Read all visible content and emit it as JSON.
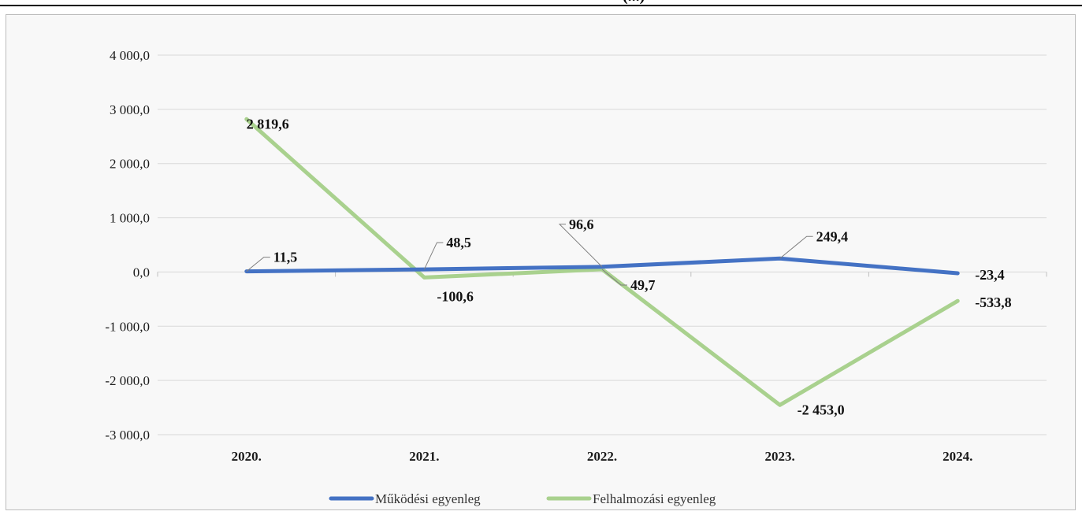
{
  "header": {
    "title_fragment": "(...)"
  },
  "chart_data": {
    "type": "line",
    "categories": [
      "2020.",
      "2021.",
      "2022.",
      "2023.",
      "2024."
    ],
    "ylim": [
      -3000,
      4000
    ],
    "yticks": [
      4000,
      3000,
      2000,
      1000,
      0,
      -1000,
      -2000,
      -3000
    ],
    "ytick_labels": [
      "4 000,0",
      "3 000,0",
      "2 000,0",
      "1 000,0",
      "0,0",
      "-1 000,0",
      "-2 000,0",
      "-3 000,0"
    ],
    "grid": true,
    "legend_position": "bottom",
    "series": [
      {
        "name": "Működési egyenleg",
        "color": "#4472c4",
        "values": [
          11.5,
          48.5,
          96.6,
          249.4,
          -23.4
        ],
        "labels": [
          "11,5",
          "48,5",
          "96,6",
          "249,4",
          "-23,4"
        ]
      },
      {
        "name": "Felhalmozási egyenleg",
        "color": "#a9d18e",
        "values": [
          2819.6,
          -100.6,
          49.7,
          -2453.0,
          -533.8
        ],
        "labels": [
          "2 819,6",
          "-100,6",
          "49,7",
          "-2 453,0",
          "-533,8"
        ]
      }
    ]
  }
}
